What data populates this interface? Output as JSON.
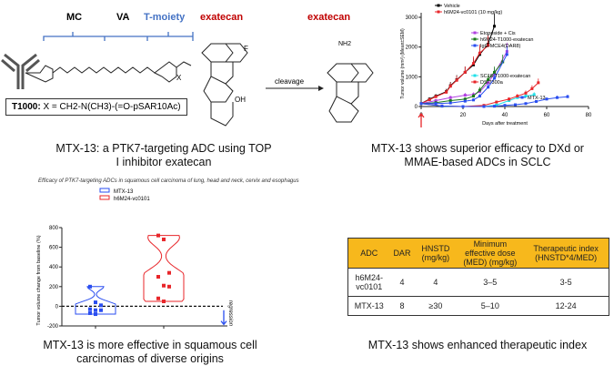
{
  "structure": {
    "labels": {
      "mc": "MC",
      "va": "VA",
      "tmoiety": "T-moiety",
      "exatecan": "exatecan",
      "x": "X",
      "f": "F",
      "oh": "OH",
      "n": "N",
      "nh2": "NH2"
    },
    "t1000_prefix": "T1000:",
    "t1000_def": "X = CH2-N(CH3)-(=O-pSAR10Ac)",
    "arrow_label": "cleavage",
    "product_label": "exatecan",
    "caption": "MTX-13: a PTK7-targeting ADC using TOP I inhibitor exatecan",
    "colors": {
      "blue": "#4472c4",
      "red": "#c00000"
    }
  },
  "line_chart_panel": {
    "caption": "MTX-13 shows superior efficacy to DXd or MMAE-based ADCs in SCLC"
  },
  "violin_panel": {
    "caption": "MTX-13 is more effective in squamous cell carcinomas of diverse origins",
    "regression_label": "regression"
  },
  "table_panel": {
    "caption": "MTX-13 shows enhanced therapeutic index",
    "headers": [
      "ADC",
      "DAR",
      "HNSTD (mg/kg)",
      "Minimum effective dose (MED) (mg/kg)",
      "Therapeutic index (HNSTD*4/MED)"
    ],
    "rows": [
      [
        "h6M24-vc0101",
        "4",
        "4",
        "3–5",
        "3-5"
      ],
      [
        "MTX-13",
        "8",
        "≥30",
        "5–10",
        "12-24"
      ]
    ],
    "header_color": "#f7b81c"
  },
  "chart_data": [
    {
      "type": "line",
      "xlabel": "Days after treatment",
      "ylabel": "Tumor volume (mm³) (Mean±SEM)",
      "xlim": [
        0,
        80
      ],
      "ylim": [
        0,
        3000
      ],
      "xticks": [
        "0",
        "20",
        "40",
        "60",
        "80"
      ],
      "yticks": [
        "0",
        "1000",
        "2000",
        "3000"
      ],
      "annotation": "treatment-arrow at day 0",
      "series": [
        {
          "name": "Vehicle",
          "color": "#000000",
          "x": [
            0,
            4,
            7,
            12,
            14,
            17,
            21,
            25,
            28,
            32,
            35
          ],
          "y": [
            100,
            250,
            350,
            500,
            700,
            900,
            1150,
            1400,
            1750,
            2100,
            2700
          ]
        },
        {
          "name": "h6M24-vc0101 (10 mg/kg)",
          "color": "#e8262a",
          "x": [
            0,
            4,
            7,
            12,
            14,
            17,
            21,
            25,
            28,
            32
          ],
          "y": [
            100,
            230,
            330,
            480,
            680,
            880,
            1150,
            1450,
            1800,
            2050
          ]
        },
        {
          "name": "Etoposide + Cis",
          "color": "#b040e0",
          "x": [
            0,
            7,
            14,
            21,
            25,
            28,
            32,
            35,
            41
          ],
          "y": [
            100,
            200,
            300,
            380,
            400,
            500,
            800,
            1100,
            1850
          ]
        },
        {
          "name": "h6M24-T1000-exatecan",
          "color": "#1a7a1a",
          "x": [
            0,
            7,
            14,
            21,
            25,
            28,
            32,
            35,
            39
          ],
          "y": [
            100,
            130,
            200,
            250,
            350,
            550,
            900,
            1150,
            1500
          ]
        },
        {
          "name": "IgG-MCE4(DAR8)",
          "color": "#2a4ef0",
          "x": [
            0,
            7,
            14,
            21,
            25,
            28,
            32,
            35,
            41
          ],
          "y": [
            100,
            100,
            120,
            180,
            220,
            350,
            650,
            950,
            1750
          ]
        },
        {
          "name": "SC16-T1000-exatecan",
          "color": "#20e0e8",
          "x": [
            0,
            10,
            20,
            30,
            36,
            42,
            46,
            50,
            54
          ],
          "y": [
            100,
            10,
            0,
            0,
            50,
            200,
            300,
            350,
            400
          ]
        },
        {
          "name": "DS-7300a",
          "color": "#e8262a",
          "x": [
            0,
            10,
            20,
            30,
            36,
            42,
            46,
            50,
            53,
            56
          ],
          "y": [
            100,
            20,
            0,
            40,
            150,
            250,
            350,
            450,
            600,
            800
          ]
        },
        {
          "name": "MTX-13",
          "color": "#2a4ef0",
          "x": [
            0,
            10,
            20,
            30,
            35,
            40,
            45,
            50,
            55,
            60,
            65,
            70
          ],
          "y": [
            100,
            20,
            0,
            0,
            10,
            40,
            60,
            100,
            170,
            250,
            300,
            330
          ]
        }
      ]
    },
    {
      "type": "violin",
      "title": "Efficacy of PTK7-targeting ADCs in squamous cell carcinoma of lung, head and neck, cervix and esophagus",
      "ylabel": "Tumor volume change from baseline (%)",
      "ylim": [
        -200,
        800
      ],
      "yticks": [
        "-200",
        "0",
        "200",
        "400",
        "600",
        "800"
      ],
      "categories": [
        "MTX-13",
        "h6M24-vc0101"
      ],
      "series": [
        {
          "name": "MTX-13",
          "color": "#2a4ef0",
          "values": [
            200,
            40,
            10,
            -30,
            -40,
            -40,
            -70,
            -80
          ]
        },
        {
          "name": "h6M24-vc0101",
          "color": "#e8262a",
          "values": [
            720,
            680,
            340,
            300,
            210,
            200,
            80,
            50
          ]
        }
      ],
      "reference_line": 0
    }
  ]
}
